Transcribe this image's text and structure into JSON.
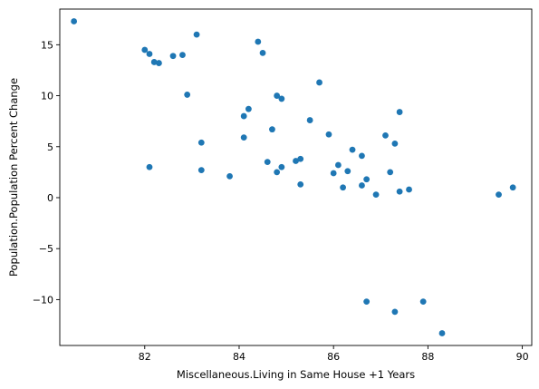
{
  "chart_data": {
    "type": "scatter",
    "xlabel": "Miscellaneous.Living in Same House +1 Years",
    "ylabel": "Population.Population Percent Change",
    "xlim": [
      80.2,
      90.2
    ],
    "ylim": [
      -14.5,
      18.5
    ],
    "xticks": [
      82,
      84,
      86,
      88,
      90
    ],
    "yticks": [
      -10,
      -5,
      0,
      5,
      10,
      15
    ],
    "point_color": "#1f77b4",
    "grid": false,
    "points": [
      {
        "x": 80.5,
        "y": 17.3
      },
      {
        "x": 82.0,
        "y": 14.5
      },
      {
        "x": 82.1,
        "y": 14.1
      },
      {
        "x": 82.2,
        "y": 13.3
      },
      {
        "x": 82.3,
        "y": 13.2
      },
      {
        "x": 82.6,
        "y": 13.9
      },
      {
        "x": 82.8,
        "y": 14.0
      },
      {
        "x": 82.9,
        "y": 10.1
      },
      {
        "x": 83.1,
        "y": 16.0
      },
      {
        "x": 82.1,
        "y": 3.0
      },
      {
        "x": 83.2,
        "y": 5.4
      },
      {
        "x": 83.2,
        "y": 2.7
      },
      {
        "x": 83.8,
        "y": 2.1
      },
      {
        "x": 84.1,
        "y": 8.0
      },
      {
        "x": 84.1,
        "y": 5.9
      },
      {
        "x": 84.2,
        "y": 8.7
      },
      {
        "x": 84.4,
        "y": 15.3
      },
      {
        "x": 84.5,
        "y": 14.2
      },
      {
        "x": 84.6,
        "y": 3.5
      },
      {
        "x": 84.7,
        "y": 6.7
      },
      {
        "x": 84.8,
        "y": 10.0
      },
      {
        "x": 84.8,
        "y": 2.5
      },
      {
        "x": 84.9,
        "y": 9.7
      },
      {
        "x": 84.9,
        "y": 3.0
      },
      {
        "x": 85.2,
        "y": 3.6
      },
      {
        "x": 85.3,
        "y": 3.8
      },
      {
        "x": 85.3,
        "y": 1.3
      },
      {
        "x": 85.5,
        "y": 7.6
      },
      {
        "x": 85.7,
        "y": 11.3
      },
      {
        "x": 85.9,
        "y": 6.2
      },
      {
        "x": 86.0,
        "y": 2.4
      },
      {
        "x": 86.1,
        "y": 3.2
      },
      {
        "x": 86.2,
        "y": 1.0
      },
      {
        "x": 86.3,
        "y": 2.6
      },
      {
        "x": 86.4,
        "y": 4.7
      },
      {
        "x": 86.6,
        "y": 4.1
      },
      {
        "x": 86.6,
        "y": 1.2
      },
      {
        "x": 86.7,
        "y": 1.8
      },
      {
        "x": 86.7,
        "y": -10.2
      },
      {
        "x": 86.9,
        "y": 0.3
      },
      {
        "x": 87.1,
        "y": 6.1
      },
      {
        "x": 87.2,
        "y": 2.5
      },
      {
        "x": 87.3,
        "y": 5.3
      },
      {
        "x": 87.3,
        "y": -11.2
      },
      {
        "x": 87.4,
        "y": 8.4
      },
      {
        "x": 87.4,
        "y": 0.6
      },
      {
        "x": 87.6,
        "y": 0.8
      },
      {
        "x": 87.9,
        "y": -10.2
      },
      {
        "x": 88.3,
        "y": -13.3
      },
      {
        "x": 89.5,
        "y": 0.3
      },
      {
        "x": 89.8,
        "y": 1.0
      }
    ]
  }
}
